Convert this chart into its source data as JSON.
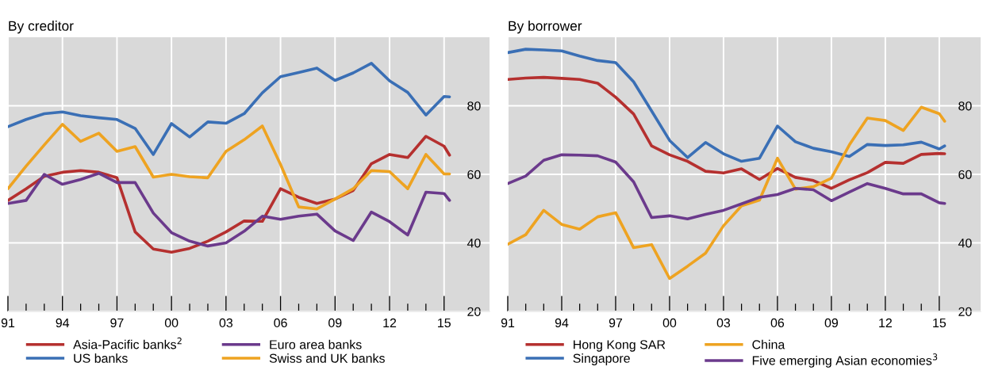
{
  "chart_data": [
    {
      "type": "line",
      "title": "By creditor",
      "x": [
        1991,
        1992,
        1993,
        1994,
        1995,
        1996,
        1997,
        1998,
        1999,
        2000,
        2001,
        2002,
        2003,
        2004,
        2005,
        2006,
        2007,
        2008,
        2009,
        2010,
        2011,
        2012,
        2013,
        2014,
        2015,
        2015.3
      ],
      "series": [
        {
          "name": "Asia-Pacific banks$^{2}$",
          "color": "#b5302f",
          "values": [
            52.4,
            55.8,
            59.4,
            60.6,
            61.1,
            60.6,
            59.0,
            43.2,
            38.2,
            37.3,
            38.4,
            40.5,
            43.2,
            46.4,
            46.3,
            55.8,
            53.3,
            51.5,
            52.8,
            55.3,
            63.1,
            65.8,
            64.9,
            71.1,
            68.2,
            65.6
          ]
        },
        {
          "name": "US banks",
          "color": "#3a6fb5",
          "values": [
            73.9,
            76.0,
            77.7,
            78.2,
            77.1,
            76.5,
            76.0,
            73.4,
            65.8,
            74.8,
            70.9,
            75.3,
            74.9,
            77.7,
            83.8,
            88.5,
            89.7,
            91.0,
            87.4,
            89.6,
            92.4,
            87.3,
            83.9,
            77.3,
            82.7,
            82.6
          ]
        },
        {
          "name": "Euro area banks",
          "color": "#6b3a8c",
          "values": [
            51.5,
            52.4,
            60.0,
            57.1,
            58.5,
            60.3,
            57.6,
            57.6,
            48.7,
            43.0,
            40.5,
            39.1,
            40.0,
            43.4,
            47.8,
            46.9,
            47.8,
            48.4,
            43.5,
            40.7,
            49.0,
            46.2,
            42.3,
            54.8,
            54.4,
            52.4
          ]
        },
        {
          "name": "Swiss and UK banks",
          "color": "#eea321",
          "values": [
            55.8,
            62.4,
            68.6,
            74.6,
            69.6,
            72.0,
            66.7,
            68.1,
            59.2,
            60.0,
            59.3,
            59.0,
            66.7,
            70.1,
            74.1,
            62.9,
            50.5,
            49.9,
            52.8,
            55.8,
            61.1,
            60.8,
            55.8,
            65.8,
            60.1,
            60.1
          ]
        }
      ],
      "xlim": [
        1991,
        2017.5
      ],
      "xticks": [
        {
          "value": 1991,
          "label": "91"
        },
        {
          "value": 1992,
          "label": null
        },
        {
          "value": 1993,
          "label": null
        },
        {
          "value": 1994,
          "label": "94"
        },
        {
          "value": 1995,
          "label": null
        },
        {
          "value": 1996,
          "label": null
        },
        {
          "value": 1997,
          "label": "97"
        },
        {
          "value": 1998,
          "label": null
        },
        {
          "value": 1999,
          "label": null
        },
        {
          "value": 2000,
          "label": "00"
        },
        {
          "value": 2001,
          "label": null
        },
        {
          "value": 2002,
          "label": null
        },
        {
          "value": 2003,
          "label": "03"
        },
        {
          "value": 2004,
          "label": null
        },
        {
          "value": 2005,
          "label": null
        },
        {
          "value": 2006,
          "label": "06"
        },
        {
          "value": 2007,
          "label": null
        },
        {
          "value": 2008,
          "label": null
        },
        {
          "value": 2009,
          "label": "09"
        },
        {
          "value": 2010,
          "label": null
        },
        {
          "value": 2011,
          "label": null
        },
        {
          "value": 2012,
          "label": "12"
        },
        {
          "value": 2013,
          "label": null
        },
        {
          "value": 2014,
          "label": null
        },
        {
          "value": 2015,
          "label": "15"
        }
      ],
      "ylim": [
        20,
        100
      ],
      "yticks": [
        20,
        40,
        60,
        80
      ],
      "grid": true,
      "legend": "bottom"
    },
    {
      "type": "line",
      "title": "By borrower",
      "x": [
        1991,
        1992,
        1993,
        1994,
        1995,
        1996,
        1997,
        1998,
        1999,
        2000,
        2001,
        2002,
        2003,
        2004,
        2005,
        2006,
        2007,
        2008,
        2009,
        2010,
        2011,
        2012,
        2013,
        2014,
        2015,
        2015.3
      ],
      "series": [
        {
          "name": "Hong Kong SAR",
          "color": "#b5302f",
          "values": [
            87.7,
            88.1,
            88.3,
            88.0,
            87.7,
            86.6,
            82.5,
            77.6,
            68.3,
            65.7,
            63.8,
            60.9,
            60.4,
            61.6,
            58.5,
            61.7,
            59.1,
            58.2,
            55.9,
            58.4,
            60.5,
            63.5,
            63.2,
            65.8,
            66.1,
            66.0
          ]
        },
        {
          "name": "Singapore",
          "color": "#3a6fb5",
          "values": [
            95.5,
            96.5,
            96.3,
            96.0,
            94.5,
            93.2,
            92.6,
            87.0,
            78.5,
            69.9,
            64.9,
            69.3,
            66.0,
            63.8,
            64.7,
            74.1,
            69.5,
            67.6,
            66.6,
            65.2,
            68.7,
            68.4,
            68.6,
            69.4,
            67.4,
            68.3
          ]
        },
        {
          "name": "China",
          "color": "#eea321",
          "values": [
            39.6,
            42.4,
            49.5,
            45.4,
            44.0,
            47.6,
            48.8,
            38.6,
            39.5,
            29.6,
            33.2,
            37.0,
            45.0,
            50.8,
            52.5,
            64.7,
            55.7,
            56.4,
            58.9,
            68.6,
            76.4,
            75.7,
            72.8,
            79.6,
            77.7,
            75.5
          ]
        },
        {
          "name": "Five emerging Asian economies$^{3}$",
          "color": "#6b3a8c",
          "values": [
            57.3,
            59.5,
            64.1,
            65.7,
            65.6,
            65.4,
            63.6,
            57.8,
            47.4,
            47.9,
            47.0,
            48.3,
            49.5,
            51.4,
            53.3,
            54.1,
            55.9,
            55.5,
            52.3,
            54.8,
            57.3,
            55.9,
            54.3,
            54.3,
            51.7,
            51.5
          ]
        }
      ],
      "xlim": [
        1991,
        2017.3
      ],
      "xticks": [
        {
          "value": 1991,
          "label": "91"
        },
        {
          "value": 1992,
          "label": null
        },
        {
          "value": 1993,
          "label": null
        },
        {
          "value": 1994,
          "label": "94"
        },
        {
          "value": 1995,
          "label": null
        },
        {
          "value": 1996,
          "label": null
        },
        {
          "value": 1997,
          "label": "97"
        },
        {
          "value": 1998,
          "label": null
        },
        {
          "value": 1999,
          "label": null
        },
        {
          "value": 2000,
          "label": "00"
        },
        {
          "value": 2001,
          "label": null
        },
        {
          "value": 2002,
          "label": null
        },
        {
          "value": 2003,
          "label": "03"
        },
        {
          "value": 2004,
          "label": null
        },
        {
          "value": 2005,
          "label": null
        },
        {
          "value": 2006,
          "label": "06"
        },
        {
          "value": 2007,
          "label": null
        },
        {
          "value": 2008,
          "label": null
        },
        {
          "value": 2009,
          "label": "09"
        },
        {
          "value": 2010,
          "label": null
        },
        {
          "value": 2011,
          "label": null
        },
        {
          "value": 2012,
          "label": "12"
        },
        {
          "value": 2013,
          "label": null
        },
        {
          "value": 2014,
          "label": null
        },
        {
          "value": 2015,
          "label": "15"
        }
      ],
      "ylim": [
        20,
        100
      ],
      "yticks": [
        20,
        40,
        60,
        80
      ],
      "grid": true,
      "legend": "bottom"
    }
  ]
}
